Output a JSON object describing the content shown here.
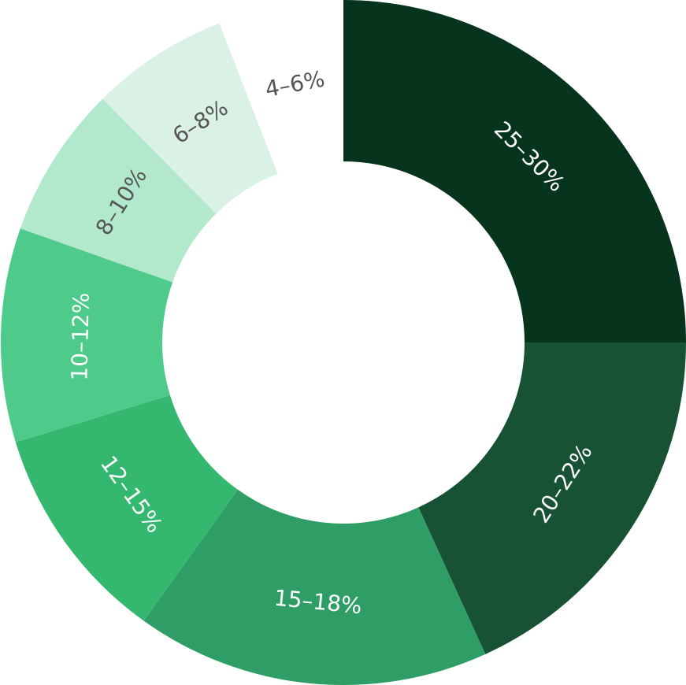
{
  "chart_data": {
    "type": "donut",
    "categories": [
      "25–30%",
      "20–22%",
      "15–18%",
      "12–15%",
      "10–12%",
      "8–10%",
      "6–8%",
      "4–6%"
    ],
    "values": [
      25,
      18.2,
      16.7,
      10.4,
      10.1,
      7.2,
      6.5,
      5.9
    ],
    "colors": [
      "#06341c",
      "#175235",
      "#2e9e66",
      "#34b870",
      "#4ecb8a",
      "#b2e8cc",
      "#d9f2e5",
      "#ffffff"
    ],
    "label_colors": [
      "#ffffff",
      "#ffffff",
      "#ffffff",
      "#ffffff",
      "#ffffff",
      "#555555",
      "#555555",
      "#555555"
    ]
  }
}
